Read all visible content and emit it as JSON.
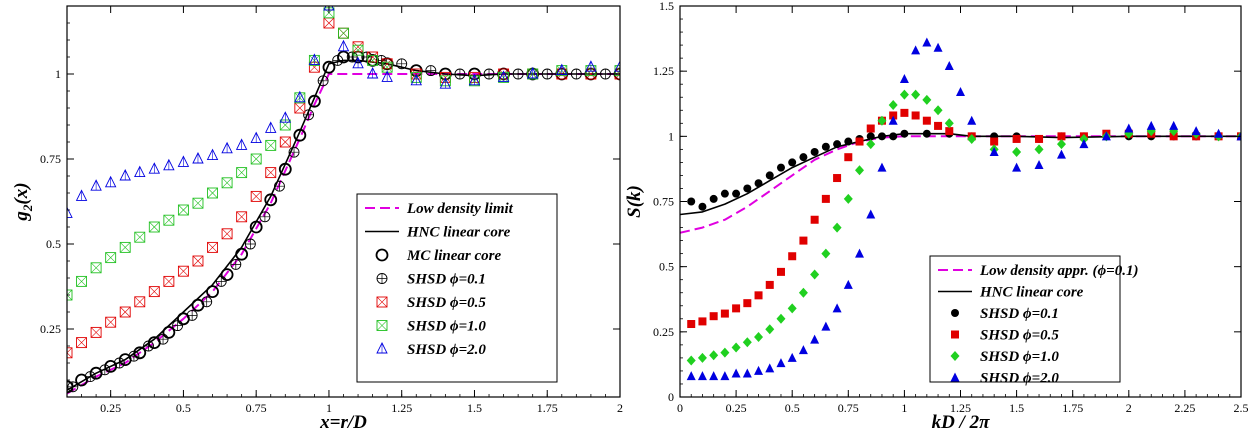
{
  "chart_data": [
    {
      "type": "line",
      "xlabel": "x=r/D",
      "ylabel": "g2(x)",
      "xlim": [
        0.1,
        2.0
      ],
      "ylim": [
        0.05,
        1.2
      ],
      "xticks": [
        "0.25",
        "0.5",
        "0.75",
        "1",
        "1.25",
        "1.5",
        "1.75",
        "2"
      ],
      "yticks": [
        "0.25",
        "0.5",
        "0.75",
        "1"
      ],
      "legend_position": "bottom-right",
      "series": [
        {
          "name": "Low density limit",
          "style": "dashed",
          "color": "#e000e0",
          "x": [
            0.1,
            0.2,
            0.3,
            0.4,
            0.5,
            0.6,
            0.7,
            0.8,
            0.9,
            0.95,
            1.0,
            1.1,
            1.5,
            2.0
          ],
          "y": [
            0.06,
            0.11,
            0.15,
            0.21,
            0.28,
            0.36,
            0.47,
            0.62,
            0.81,
            0.91,
            1.0,
            1.0,
            1.0,
            1.0
          ]
        },
        {
          "name": "HNC linear core",
          "style": "solid",
          "color": "#000000",
          "x": [
            0.1,
            0.2,
            0.3,
            0.4,
            0.5,
            0.6,
            0.7,
            0.8,
            0.9,
            0.95,
            1.0,
            1.05,
            1.1,
            1.2,
            1.3,
            1.4,
            1.5,
            1.6,
            1.8,
            2.0
          ],
          "y": [
            0.07,
            0.12,
            0.16,
            0.22,
            0.3,
            0.38,
            0.49,
            0.64,
            0.83,
            0.93,
            1.03,
            1.04,
            1.04,
            1.03,
            1.01,
            1.0,
            0.995,
            1.0,
            1.0,
            1.0
          ]
        },
        {
          "name": "MC linear core",
          "marker": "circle-open",
          "color": "#000000",
          "x": [
            0.1,
            0.15,
            0.2,
            0.25,
            0.3,
            0.35,
            0.4,
            0.45,
            0.5,
            0.55,
            0.6,
            0.65,
            0.7,
            0.75,
            0.8,
            0.85,
            0.9,
            0.95,
            1.0,
            1.05,
            1.1,
            1.15,
            1.2,
            1.3,
            1.4,
            1.5,
            1.6,
            1.7,
            1.8,
            1.9,
            2.0
          ],
          "y": [
            0.08,
            0.1,
            0.12,
            0.14,
            0.16,
            0.18,
            0.21,
            0.24,
            0.28,
            0.32,
            0.36,
            0.41,
            0.47,
            0.55,
            0.63,
            0.72,
            0.82,
            0.92,
            1.02,
            1.05,
            1.05,
            1.04,
            1.03,
            1.01,
            1.0,
            1.0,
            1.0,
            1.0,
            1.0,
            1.0,
            1.0
          ]
        },
        {
          "name": "SHSD ϕ=0.1",
          "marker": "circle-cross",
          "color": "#000000",
          "x": [
            0.12,
            0.18,
            0.23,
            0.28,
            0.33,
            0.38,
            0.43,
            0.48,
            0.53,
            0.58,
            0.63,
            0.68,
            0.73,
            0.78,
            0.83,
            0.88,
            0.93,
            0.98,
            1.03,
            1.08,
            1.13,
            1.18,
            1.25,
            1.35,
            1.45,
            1.55,
            1.65,
            1.75,
            1.85,
            1.95
          ],
          "y": [
            0.08,
            0.11,
            0.13,
            0.15,
            0.17,
            0.2,
            0.22,
            0.26,
            0.29,
            0.33,
            0.39,
            0.44,
            0.5,
            0.58,
            0.67,
            0.77,
            0.88,
            0.98,
            1.04,
            1.05,
            1.05,
            1.04,
            1.03,
            1.01,
            1.0,
            1.0,
            1.0,
            1.0,
            1.0,
            1.0
          ]
        },
        {
          "name": "SHSD ϕ=0.5",
          "marker": "square-cross",
          "color": "#e00000",
          "x": [
            0.1,
            0.15,
            0.2,
            0.25,
            0.3,
            0.35,
            0.4,
            0.45,
            0.5,
            0.55,
            0.6,
            0.65,
            0.7,
            0.75,
            0.8,
            0.85,
            0.9,
            0.95,
            1.0,
            1.05,
            1.1,
            1.15,
            1.2,
            1.3,
            1.4,
            1.5,
            1.6,
            1.7,
            1.8,
            1.9,
            2.0
          ],
          "y": [
            0.18,
            0.21,
            0.24,
            0.27,
            0.3,
            0.33,
            0.36,
            0.39,
            0.42,
            0.45,
            0.49,
            0.53,
            0.58,
            0.64,
            0.71,
            0.8,
            0.9,
            1.02,
            1.15,
            1.12,
            1.08,
            1.05,
            1.03,
            1.0,
            0.99,
            0.99,
            1.0,
            1.0,
            1.0,
            1.0,
            1.0
          ]
        },
        {
          "name": "SHSD ϕ=1.0",
          "marker": "square-cross",
          "color": "#20c020",
          "x": [
            0.1,
            0.15,
            0.2,
            0.25,
            0.3,
            0.35,
            0.4,
            0.45,
            0.5,
            0.55,
            0.6,
            0.65,
            0.7,
            0.75,
            0.8,
            0.85,
            0.9,
            0.95,
            1.0,
            1.05,
            1.1,
            1.15,
            1.2,
            1.3,
            1.4,
            1.5,
            1.6,
            1.7,
            1.8,
            1.9,
            2.0
          ],
          "y": [
            0.35,
            0.39,
            0.43,
            0.46,
            0.49,
            0.52,
            0.55,
            0.57,
            0.6,
            0.62,
            0.65,
            0.68,
            0.71,
            0.75,
            0.79,
            0.85,
            0.93,
            1.04,
            1.18,
            1.12,
            1.07,
            1.04,
            1.02,
            0.99,
            0.98,
            0.98,
            0.99,
            1.0,
            1.01,
            1.01,
            1.01
          ]
        },
        {
          "name": "SHSD ϕ=2.0",
          "marker": "triangle-cross",
          "color": "#0000e0",
          "x": [
            0.1,
            0.15,
            0.2,
            0.25,
            0.3,
            0.35,
            0.4,
            0.45,
            0.5,
            0.55,
            0.6,
            0.65,
            0.7,
            0.75,
            0.8,
            0.85,
            0.9,
            0.95,
            1.0,
            1.05,
            1.1,
            1.15,
            1.2,
            1.3,
            1.4,
            1.5,
            1.6,
            1.7,
            1.8,
            1.9,
            2.0
          ],
          "y": [
            0.59,
            0.64,
            0.67,
            0.68,
            0.7,
            0.71,
            0.72,
            0.73,
            0.74,
            0.75,
            0.76,
            0.78,
            0.79,
            0.81,
            0.84,
            0.87,
            0.93,
            1.04,
            1.2,
            1.08,
            1.03,
            1.0,
            0.99,
            0.98,
            0.97,
            0.98,
            0.99,
            1.0,
            1.01,
            1.02,
            1.02
          ]
        }
      ]
    },
    {
      "type": "line",
      "xlabel": "kD / 2π",
      "ylabel": "S(k)",
      "xlim": [
        0,
        2.5
      ],
      "ylim": [
        0,
        1.5
      ],
      "xticks": [
        "0",
        "0.25",
        "0.5",
        "0.75",
        "1",
        "1.25",
        "1.5",
        "1.75",
        "2",
        "2.25",
        "2.5"
      ],
      "yticks": [
        "0",
        "0.25",
        "0.5",
        "0.75",
        "1",
        "1.25",
        "1.5"
      ],
      "legend_position": "bottom-left",
      "series": [
        {
          "name": "Low density appr. (ϕ=0.1)",
          "style": "dashed",
          "color": "#e000e0",
          "x": [
            0.0,
            0.1,
            0.2,
            0.3,
            0.4,
            0.5,
            0.6,
            0.7,
            0.8,
            0.9,
            1.0,
            1.2,
            1.5,
            2.0,
            2.5
          ],
          "y": [
            0.63,
            0.65,
            0.68,
            0.73,
            0.79,
            0.85,
            0.91,
            0.95,
            0.98,
            0.995,
            1.0,
            1.0,
            1.0,
            1.0,
            1.0
          ]
        },
        {
          "name": "HNC linear core",
          "style": "solid",
          "color": "#000000",
          "x": [
            0.0,
            0.1,
            0.2,
            0.3,
            0.4,
            0.5,
            0.6,
            0.7,
            0.8,
            0.9,
            1.0,
            1.1,
            1.2,
            1.3,
            1.4,
            1.5,
            1.7,
            2.0,
            2.5
          ],
          "y": [
            0.7,
            0.71,
            0.74,
            0.78,
            0.83,
            0.88,
            0.92,
            0.96,
            0.98,
            1.0,
            1.01,
            1.01,
            1.01,
            1.0,
            1.0,
            1.0,
            0.995,
            1.0,
            1.0
          ]
        },
        {
          "name": "SHSD ϕ=0.1",
          "marker": "circle",
          "color": "#000000",
          "x": [
            0.05,
            0.1,
            0.15,
            0.2,
            0.25,
            0.3,
            0.35,
            0.4,
            0.45,
            0.5,
            0.55,
            0.6,
            0.65,
            0.7,
            0.75,
            0.8,
            0.85,
            0.9,
            0.95,
            1.0,
            1.1,
            1.2,
            1.3,
            1.4,
            1.5,
            1.6,
            1.7,
            1.8,
            1.9,
            2.0,
            2.1,
            2.2,
            2.3,
            2.4,
            2.5
          ],
          "y": [
            0.75,
            0.73,
            0.76,
            0.78,
            0.78,
            0.8,
            0.82,
            0.85,
            0.88,
            0.9,
            0.92,
            0.94,
            0.96,
            0.97,
            0.98,
            0.99,
            1.0,
            1.0,
            1.0,
            1.01,
            1.01,
            1.01,
            1.0,
            1.0,
            1.0,
            0.99,
            1.0,
            1.0,
            1.0,
            1.0,
            1.0,
            1.0,
            1.0,
            1.0,
            1.0
          ]
        },
        {
          "name": "SHSD ϕ=0.5",
          "marker": "square",
          "color": "#e00000",
          "x": [
            0.05,
            0.1,
            0.15,
            0.2,
            0.25,
            0.3,
            0.35,
            0.4,
            0.45,
            0.5,
            0.55,
            0.6,
            0.65,
            0.7,
            0.75,
            0.8,
            0.85,
            0.9,
            0.95,
            1.0,
            1.05,
            1.1,
            1.15,
            1.2,
            1.3,
            1.4,
            1.5,
            1.6,
            1.7,
            1.8,
            1.9,
            2.0,
            2.1,
            2.2,
            2.3,
            2.4,
            2.5
          ],
          "y": [
            0.28,
            0.29,
            0.31,
            0.32,
            0.34,
            0.36,
            0.39,
            0.43,
            0.48,
            0.54,
            0.6,
            0.68,
            0.76,
            0.84,
            0.92,
            0.98,
            1.03,
            1.06,
            1.08,
            1.09,
            1.08,
            1.06,
            1.04,
            1.02,
            1.0,
            0.98,
            0.99,
            0.99,
            1.0,
            1.0,
            1.01,
            1.01,
            1.01,
            1.0,
            1.0,
            1.0,
            1.0
          ]
        },
        {
          "name": "SHSD ϕ=1.0",
          "marker": "diamond",
          "color": "#20d020",
          "x": [
            0.05,
            0.1,
            0.15,
            0.2,
            0.25,
            0.3,
            0.35,
            0.4,
            0.45,
            0.5,
            0.55,
            0.6,
            0.65,
            0.7,
            0.75,
            0.8,
            0.85,
            0.9,
            0.95,
            1.0,
            1.05,
            1.1,
            1.15,
            1.2,
            1.3,
            1.4,
            1.5,
            1.6,
            1.7,
            1.8,
            1.9,
            2.0,
            2.1,
            2.2,
            2.3,
            2.4,
            2.5
          ],
          "y": [
            0.14,
            0.15,
            0.16,
            0.17,
            0.19,
            0.21,
            0.23,
            0.26,
            0.3,
            0.34,
            0.4,
            0.47,
            0.55,
            0.65,
            0.76,
            0.87,
            0.97,
            1.06,
            1.12,
            1.16,
            1.16,
            1.14,
            1.1,
            1.05,
            0.99,
            0.95,
            0.94,
            0.95,
            0.97,
            0.99,
            1.0,
            1.01,
            1.02,
            1.02,
            1.01,
            1.0,
            1.0
          ]
        },
        {
          "name": "SHSD ϕ=2.0",
          "marker": "triangle",
          "color": "#0000e0",
          "x": [
            0.05,
            0.1,
            0.15,
            0.2,
            0.25,
            0.3,
            0.35,
            0.4,
            0.45,
            0.5,
            0.55,
            0.6,
            0.65,
            0.7,
            0.75,
            0.8,
            0.85,
            0.9,
            0.95,
            1.0,
            1.05,
            1.1,
            1.15,
            1.2,
            1.25,
            1.3,
            1.4,
            1.5,
            1.6,
            1.7,
            1.8,
            1.9,
            2.0,
            2.1,
            2.2,
            2.3,
            2.4,
            2.5
          ],
          "y": [
            0.08,
            0.08,
            0.08,
            0.08,
            0.09,
            0.09,
            0.1,
            0.11,
            0.13,
            0.15,
            0.18,
            0.22,
            0.27,
            0.34,
            0.43,
            0.55,
            0.7,
            0.88,
            1.06,
            1.22,
            1.33,
            1.36,
            1.34,
            1.27,
            1.17,
            1.06,
            0.94,
            0.88,
            0.89,
            0.93,
            0.97,
            1.0,
            1.03,
            1.04,
            1.04,
            1.02,
            1.01,
            1.0
          ]
        }
      ]
    }
  ],
  "panels": [
    {
      "ylabel_main": "g",
      "ylabel_sub": "2",
      "ylabel_tail": "(x)",
      "xlabel": "x=r/D",
      "legend": [
        "Low density limit",
        "HNC linear core",
        "MC linear core",
        "SHSD ϕ=0.1",
        "SHSD ϕ=0.5",
        "SHSD ϕ=1.0",
        "SHSD ϕ=2.0"
      ]
    },
    {
      "ylabel": "S(k)",
      "xlabel": "kD / 2π",
      "legend": [
        "Low density appr. (ϕ=0.1)",
        "HNC linear core",
        "SHSD ϕ=0.1",
        "SHSD ϕ=0.5",
        "SHSD ϕ=1.0",
        "SHSD ϕ=2.0"
      ]
    }
  ]
}
